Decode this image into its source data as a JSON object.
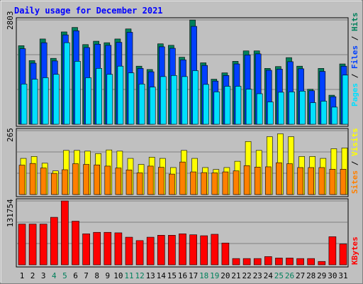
{
  "chart_data": [
    {
      "type": "bar",
      "title": "Daily usage for December 2021",
      "panel": "hits-files-pages",
      "ymax_label": "2803",
      "ylim": [
        0,
        2803
      ],
      "grid": true,
      "legend": [
        "Pages",
        "Files",
        "Hits"
      ],
      "categories": [
        "1",
        "2",
        "3",
        "4",
        "5",
        "6",
        "7",
        "8",
        "9",
        "10",
        "11",
        "12",
        "13",
        "14",
        "15",
        "16",
        "17",
        "18",
        "19",
        "20",
        "21",
        "22",
        "23",
        "24",
        "25",
        "26",
        "27",
        "28",
        "29",
        "30",
        "31"
      ],
      "weekend_days": [
        "4",
        "5",
        "11",
        "12",
        "18",
        "19",
        "25",
        "26"
      ],
      "series": [
        {
          "name": "Hits",
          "values": [
            2110,
            1710,
            2290,
            1770,
            2480,
            2600,
            2140,
            2230,
            2190,
            2290,
            2560,
            1560,
            1470,
            2160,
            2120,
            1800,
            2800,
            1650,
            1210,
            1380,
            1690,
            1970,
            1970,
            1500,
            1550,
            1790,
            1560,
            940,
            1500,
            780,
            1620
          ]
        },
        {
          "name": "Files",
          "values": [
            2030,
            1640,
            2190,
            1700,
            2400,
            2510,
            2060,
            2150,
            2120,
            2200,
            2470,
            1500,
            1410,
            2080,
            2040,
            1730,
            2630,
            1580,
            1160,
            1310,
            1620,
            1860,
            1890,
            1450,
            1480,
            1680,
            1490,
            900,
            1420,
            740,
            1560
          ]
        },
        {
          "name": "Pages",
          "values": [
            1080,
            1210,
            1250,
            1340,
            2190,
            1690,
            1250,
            1500,
            1340,
            1560,
            1380,
            1080,
            1000,
            1280,
            1310,
            1280,
            1440,
            1070,
            870,
            1020,
            1020,
            940,
            820,
            600,
            860,
            870,
            890,
            580,
            620,
            460,
            1320
          ]
        }
      ]
    },
    {
      "type": "bar",
      "panel": "visits-sites",
      "ymax_label": "265",
      "ylim": [
        0,
        265
      ],
      "grid": true,
      "legend": [
        "Sites",
        "Visits"
      ],
      "categories": [
        "1",
        "2",
        "3",
        "4",
        "5",
        "6",
        "7",
        "8",
        "9",
        "10",
        "11",
        "12",
        "13",
        "14",
        "15",
        "16",
        "17",
        "18",
        "19",
        "20",
        "21",
        "22",
        "23",
        "24",
        "25",
        "26",
        "27",
        "28",
        "29",
        "30",
        "31"
      ],
      "series": [
        {
          "name": "Visits",
          "values": [
            150,
            158,
            130,
            98,
            183,
            183,
            180,
            170,
            185,
            180,
            150,
            125,
            155,
            150,
            112,
            183,
            150,
            112,
            104,
            112,
            138,
            220,
            183,
            240,
            252,
            240,
            158,
            158,
            150,
            190,
            193
          ]
        },
        {
          "name": "Sites",
          "values": [
            122,
            129,
            110,
            88,
            103,
            128,
            125,
            123,
            118,
            110,
            102,
            90,
            118,
            113,
            85,
            135,
            94,
            91,
            90,
            94,
            98,
            120,
            114,
            115,
            132,
            128,
            112,
            112,
            112,
            105,
            105
          ]
        }
      ]
    },
    {
      "type": "bar",
      "panel": "kbytes",
      "ymax_label": "131754",
      "ylim": [
        0,
        131754
      ],
      "grid": true,
      "legend": [
        "KBytes"
      ],
      "categories": [
        "1",
        "2",
        "3",
        "4",
        "5",
        "6",
        "7",
        "8",
        "9",
        "10",
        "11",
        "12",
        "13",
        "14",
        "15",
        "16",
        "17",
        "18",
        "19",
        "20",
        "21",
        "22",
        "23",
        "24",
        "25",
        "26",
        "27",
        "28",
        "29",
        "30",
        "31"
      ],
      "series": [
        {
          "name": "KBytes",
          "values": [
            84000,
            84000,
            84000,
            98000,
            131754,
            90000,
            64000,
            67000,
            67000,
            66000,
            57000,
            50000,
            57000,
            61000,
            61000,
            64000,
            62000,
            60000,
            63000,
            45000,
            13000,
            13000,
            13000,
            17000,
            14000,
            14000,
            13000,
            13000,
            7000,
            58000,
            43000
          ]
        }
      ]
    }
  ],
  "colors": {
    "background": "#c0c0c0",
    "plot_bg": "#c0c0c0",
    "title": "#0000ff",
    "hits": "#00805b",
    "files": "#0040ff",
    "pages": "#00e0ff",
    "visits": "#ffff00",
    "sites": "#ff8000",
    "kbytes": "#ff0000",
    "weekend_label": "#00805b",
    "weekday_label": "#000000",
    "grid": "#808080"
  }
}
